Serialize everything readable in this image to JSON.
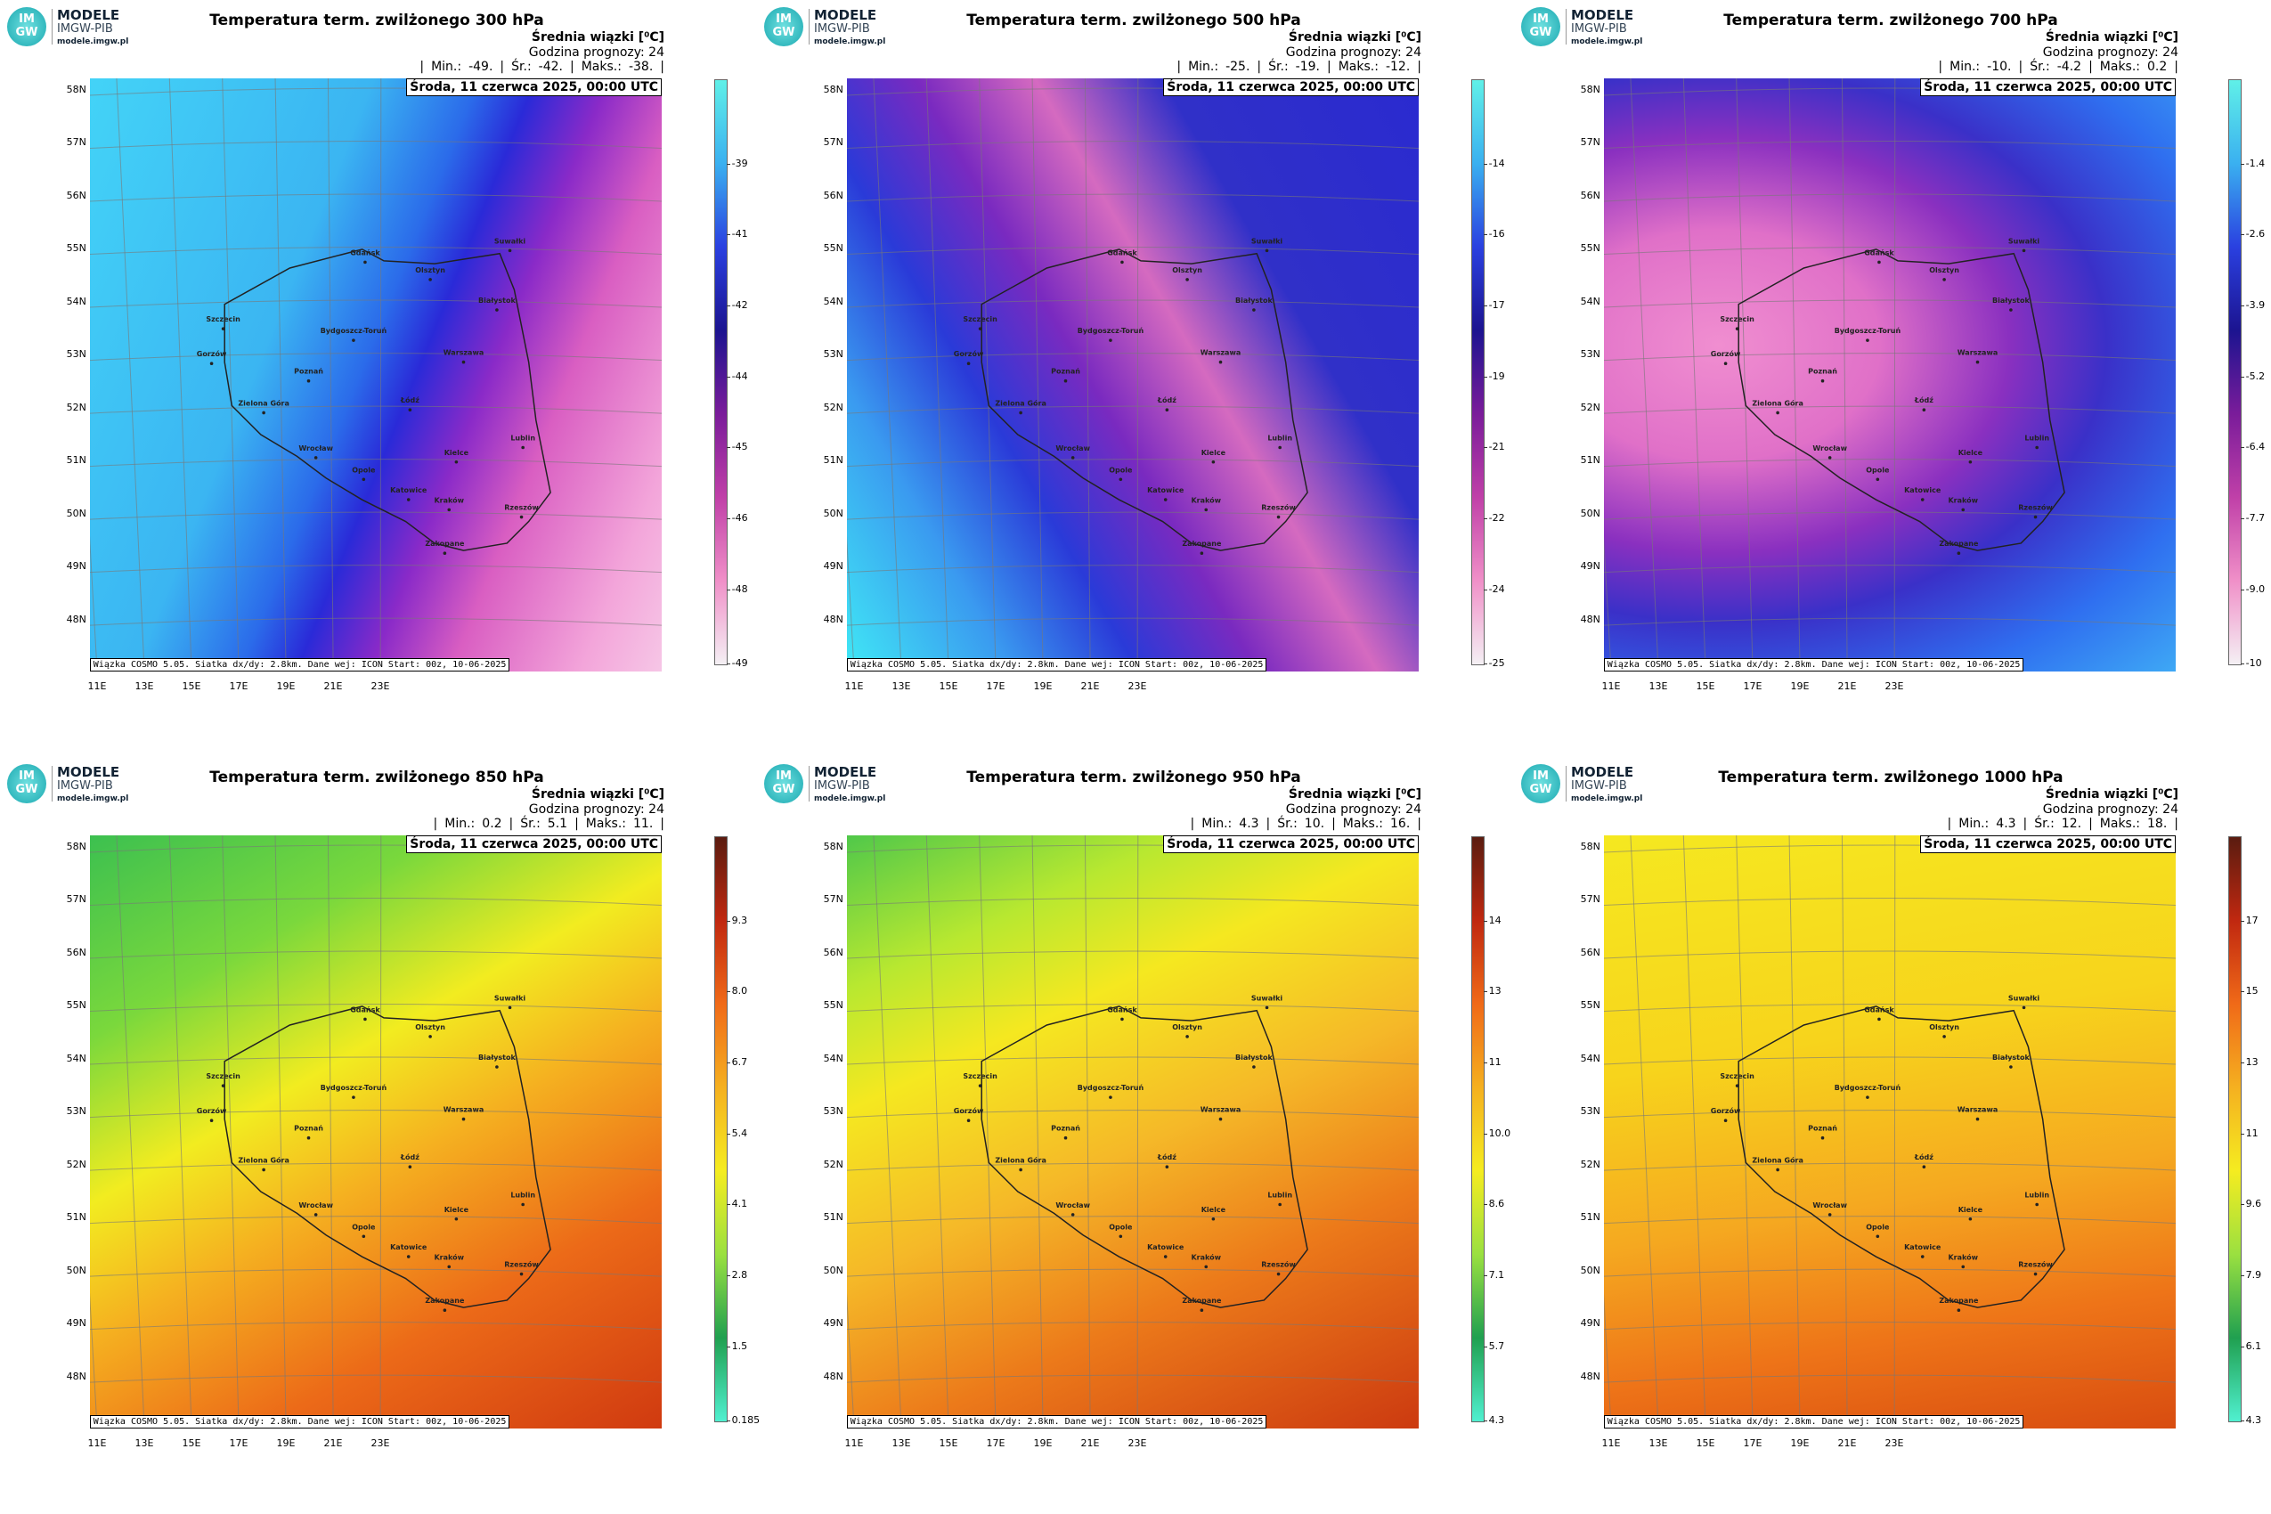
{
  "logo": {
    "badge_top": "IM",
    "badge_bottom": "GW",
    "name": "MODELE",
    "org": "IMGW-PIB",
    "url": "modele.imgw.pl"
  },
  "header": {
    "mean_label": "Średnia wiązki [⁰C]",
    "lead": "Godzina prognozy: 24",
    "separator": "|",
    "min_label": "Min.:",
    "mean_short": "Śr.:",
    "max_label": "Maks.:",
    "valid": "Środa, 11 czerwca 2025, 00:00 UTC",
    "source": "Wiązka COSMO 5.05. Siatka dx/dy: 2.8km. Dane wej: ICON Start: 00z, 10-06-2025"
  },
  "axes": {
    "lat": [
      "58N",
      "57N",
      "56N",
      "55N",
      "54N",
      "53N",
      "52N",
      "51N",
      "50N",
      "49N",
      "48N"
    ],
    "lon": [
      "11E",
      "13E",
      "15E",
      "17E",
      "19E",
      "21E",
      "23E"
    ]
  },
  "cities": [
    "Gdańsk",
    "Olsztyn",
    "Suwałki",
    "Białystok",
    "Szczecin",
    "Bydgoszcz-Toruń",
    "Gorzów",
    "Poznań",
    "Warszawa",
    "Zielona Góra",
    "Łódź",
    "Lublin",
    "Wrocław",
    "Opole",
    "Kielce",
    "Katowice",
    "Kraków",
    "Rzeszów",
    "Zakopane"
  ],
  "panels": [
    {
      "title": "Temperatura term. zwilżonego 300 hPa",
      "min": "-49.",
      "mean": "-42.",
      "max": "-38.",
      "colorbar": [
        "-39",
        "-41",
        "-42",
        "-44",
        "-45",
        "-46",
        "-48",
        "-49"
      ]
    },
    {
      "title": "Temperatura term. zwilżonego 500 hPa",
      "min": "-25.",
      "mean": "-19.",
      "max": "-12.",
      "colorbar": [
        "-14",
        "-16",
        "-17",
        "-19",
        "-21",
        "-22",
        "-24",
        "-25"
      ]
    },
    {
      "title": "Temperatura term. zwilżonego 700 hPa",
      "min": "-10.",
      "mean": "-4.2",
      "max": "0.2",
      "colorbar": [
        "-1.4",
        "-2.6",
        "-3.9",
        "-5.2",
        "-6.4",
        "-7.7",
        "-9.0",
        "-10"
      ]
    },
    {
      "title": "Temperatura term. zwilżonego 850 hPa",
      "min": "0.2",
      "mean": "5.1",
      "max": "11.",
      "colorbar": [
        "9.3",
        "8.0",
        "6.7",
        "5.4",
        "4.1",
        "2.8",
        "1.5",
        "0.185"
      ]
    },
    {
      "title": "Temperatura term. zwilżonego 950 hPa",
      "min": "4.3",
      "mean": "10.",
      "max": "16.",
      "colorbar": [
        "14",
        "13",
        "11",
        "10.0",
        "8.6",
        "7.1",
        "5.7",
        "4.3"
      ]
    },
    {
      "title": "Temperatura term. zwilżonego 1000 hPa",
      "min": "4.3",
      "mean": "12.",
      "max": "18.",
      "colorbar": [
        "17",
        "15",
        "13",
        "11",
        "9.6",
        "7.9",
        "6.1",
        "4.3"
      ]
    }
  ]
}
